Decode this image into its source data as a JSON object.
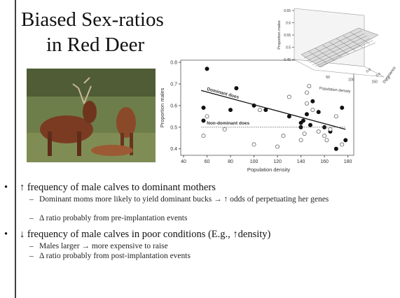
{
  "title_lines": [
    "Biased Sex-ratios",
    "in Red Deer"
  ],
  "chart_data": {
    "type": "scatter",
    "xlabel": "Population density",
    "ylabel": "Proportion males",
    "xlim": [
      40,
      185
    ],
    "ylim": [
      0.37,
      0.81
    ],
    "xticks": [
      40,
      60,
      80,
      100,
      120,
      140,
      160,
      180
    ],
    "yticks": [
      0.4,
      0.5,
      0.6,
      0.7,
      0.8
    ],
    "series": [
      {
        "name": "Dominant does",
        "color": "#111111",
        "marker": "filled",
        "x": [
          57,
          60,
          57,
          85,
          100,
          110,
          80,
          130,
          140,
          142,
          145,
          150,
          155,
          160,
          165,
          170,
          175,
          178,
          140,
          148
        ],
        "values": [
          0.59,
          0.77,
          0.53,
          0.68,
          0.6,
          0.58,
          0.58,
          0.55,
          0.52,
          0.53,
          0.56,
          0.62,
          0.57,
          0.5,
          0.48,
          0.4,
          0.59,
          0.44,
          0.5,
          0.51
        ],
        "fit": {
          "x": [
            55,
            178
          ],
          "values": [
            0.67,
            0.49
          ]
        }
      },
      {
        "name": "Non-dominant does",
        "color": "#666666",
        "marker": "open",
        "x": [
          57,
          60,
          75,
          100,
          105,
          120,
          125,
          130,
          140,
          143,
          145,
          147,
          150,
          155,
          160,
          162,
          165,
          170,
          175,
          145
        ],
        "values": [
          0.46,
          0.55,
          0.49,
          0.42,
          0.58,
          0.41,
          0.46,
          0.64,
          0.44,
          0.47,
          0.66,
          0.69,
          0.58,
          0.48,
          0.46,
          0.44,
          0.49,
          0.55,
          0.42,
          0.61
        ],
        "fit": {
          "x": [
            55,
            178
          ],
          "values": [
            0.5,
            0.5
          ]
        }
      }
    ]
  },
  "inset": {
    "ylabel": "Proportion males",
    "xlabel": "Population density",
    "zlabel": "Dominance",
    "yticks": [
      0.45,
      0.5,
      0.55,
      0.6,
      0.65
    ],
    "xticks": [
      50,
      100,
      150
    ],
    "zticks": [
      {
        "value": 0,
        "label": "0.0"
      },
      {
        "value": 0.5,
        "label": "0.5"
      },
      {
        "value": 1,
        "label": "1.0"
      }
    ]
  },
  "bullets": [
    {
      "text": "↑ frequency of male calves to dominant mothers",
      "items": [
        "Dominant moms more likely to yield dominant bucks → ↑ odds of perpetuating her genes",
        "Δ ratio probably from pre-implantation events"
      ]
    },
    {
      "text": "↓ frequency of male calves in poor conditions (E.g., ↑density)",
      "items": [
        "Males larger → more expensive to raise",
        "Δ ratio probably from post-implantation events"
      ]
    }
  ]
}
